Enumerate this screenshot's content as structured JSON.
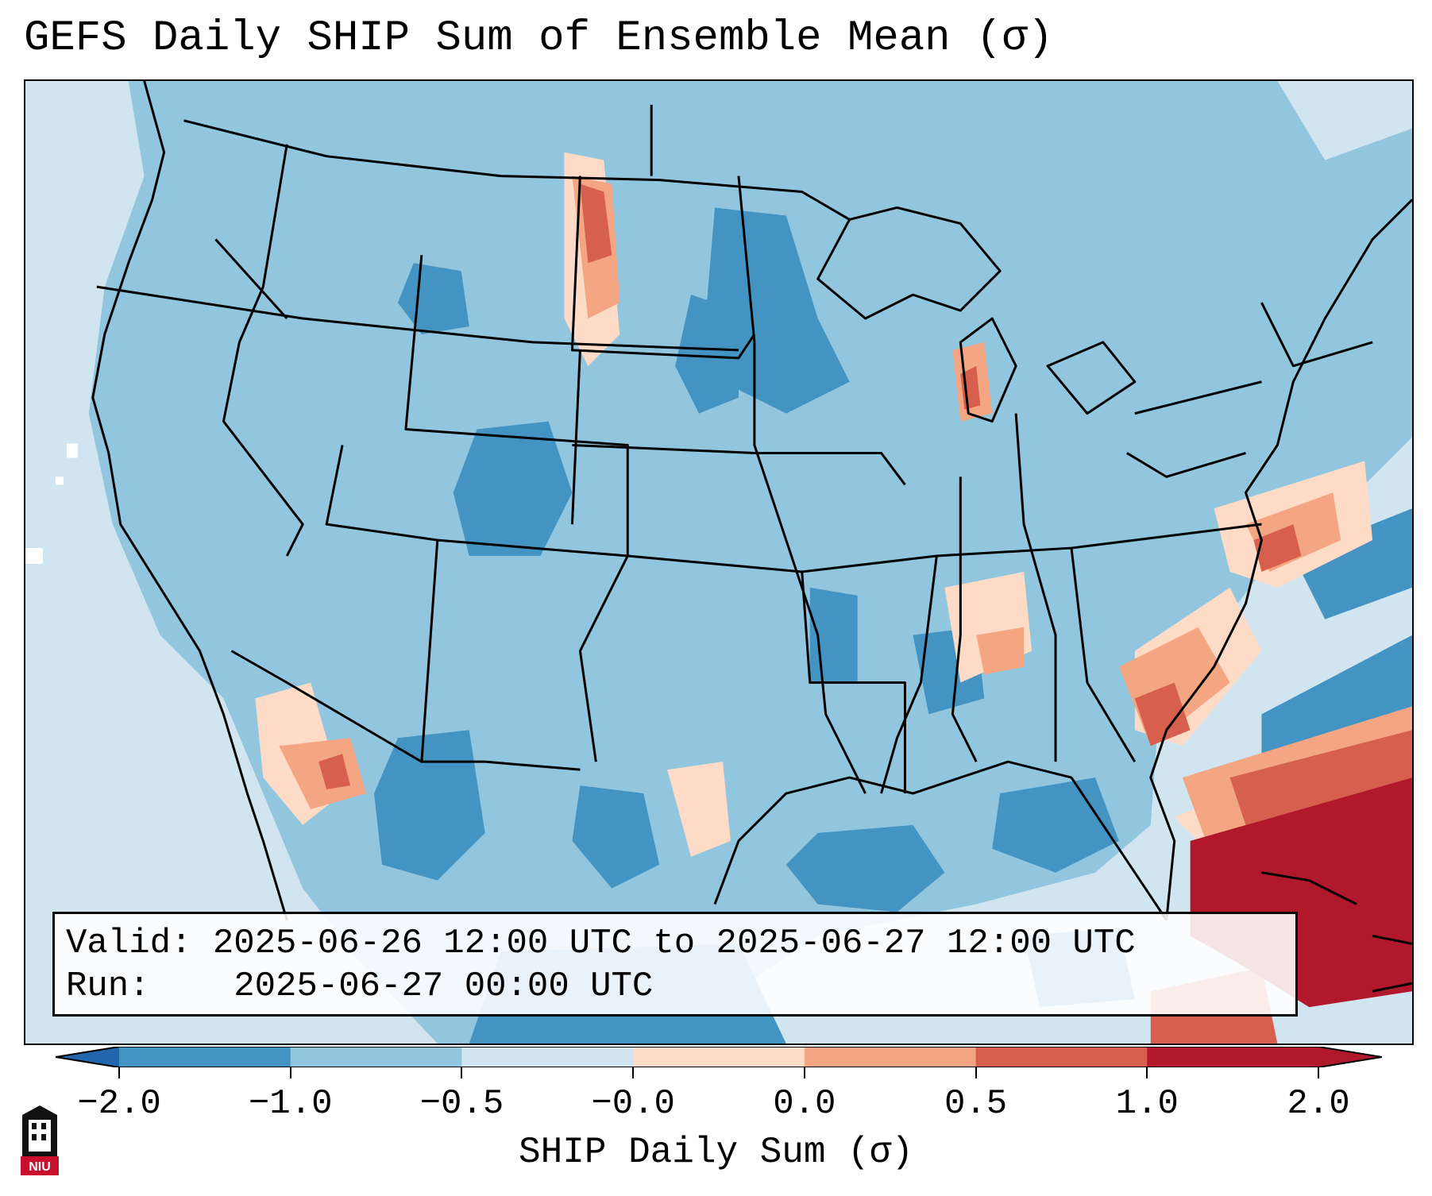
{
  "title": "GEFS Daily SHIP Sum of Ensemble Mean (σ)",
  "info": {
    "valid_label": "Valid:",
    "valid_value": "2025-06-26 12:00 UTC to 2025-06-27 12:00 UTC",
    "run_label": "Run:",
    "run_value": "2025-06-27 00:00 UTC"
  },
  "colorbar": {
    "label": "SHIP Daily Sum (σ)",
    "ticks": [
      "−2.0",
      "−1.0",
      "−0.5",
      "−0.0",
      "0.0",
      "0.5",
      "1.0",
      "2.0"
    ],
    "colors": [
      "#4393c3",
      "#92c5de",
      "#d1e5f0",
      "#f7f7f7",
      "#fddbc7",
      "#f4a582",
      "#d6604d",
      "#b2182b"
    ],
    "extend": "both"
  },
  "logo": {
    "text": "NIU"
  },
  "map": {
    "region": "Contiguous United States",
    "background_color": "#d1e5f0"
  }
}
